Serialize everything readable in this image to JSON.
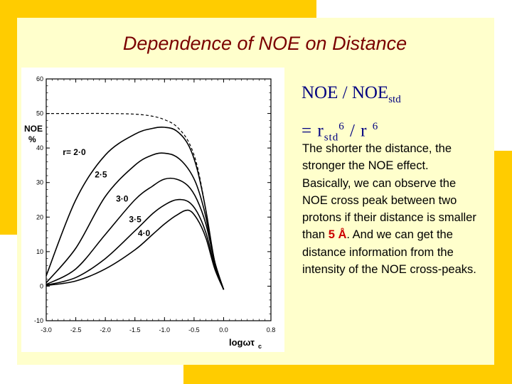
{
  "title": "Dependence of NOE on Distance",
  "formula": {
    "line1_main": "NOE / NOE",
    "line1_sub": "std",
    "line2_prefix": "=  r",
    "line2_sub": "std",
    "line2_sup": "6",
    "line2_mid": " / r ",
    "line2_sup2": "6"
  },
  "description": {
    "text_before": "The shorter the distance, the stronger the NOE effect. Basically, we can observe the NOE cross peak between two protons if their distance is smaller than ",
    "highlight": "5 Å",
    "text_after": ". And we can get the distance information from the intensity of the NOE cross-peaks."
  },
  "colors": {
    "accent": "#ffcc00",
    "panel": "#ffffcc",
    "title": "#7a0000",
    "formula": "#000080",
    "highlight": "#cc0000"
  },
  "chart_data": {
    "type": "line",
    "ylabel": "NOE %",
    "xlabel": "logωτc",
    "xlim": [
      -3.0,
      0.8
    ],
    "ylim": [
      -10,
      60
    ],
    "xticks": [
      "-3.0",
      "-2.5",
      "-2.0",
      "-1.5",
      "-1.0",
      "-0.5",
      "0.0",
      "0.8"
    ],
    "yticks": [
      "60",
      "50",
      "40",
      "30",
      "20",
      "10",
      "0",
      "-10"
    ],
    "series": [
      {
        "name": "dashed",
        "dashed": true,
        "x": [
          -3.0,
          -2.5,
          -2.0,
          -1.5,
          -1.2,
          -1.0,
          -0.8,
          -0.6,
          -0.45,
          -0.3,
          -0.15,
          0.0
        ],
        "y": [
          50,
          50,
          50,
          49.8,
          49.2,
          48.2,
          46.3,
          42,
          35,
          22,
          7,
          -1
        ]
      },
      {
        "name": "r= 2·0",
        "x": [
          -3.0,
          -2.5,
          -2.0,
          -1.5,
          -1.2,
          -1.0,
          -0.8,
          -0.6,
          -0.45,
          -0.3,
          -0.15,
          0.0
        ],
        "y": [
          3,
          25,
          38,
          44,
          45.7,
          46,
          45,
          41,
          34,
          22,
          7,
          -1
        ]
      },
      {
        "name": "2·5",
        "x": [
          -3.0,
          -2.5,
          -2.0,
          -1.5,
          -1.2,
          -1.0,
          -0.8,
          -0.6,
          -0.45,
          -0.3,
          -0.15,
          0.0
        ],
        "y": [
          1,
          11,
          26,
          35,
          38,
          38.5,
          37.5,
          34,
          29,
          20,
          7,
          -1
        ]
      },
      {
        "name": "3·0",
        "x": [
          -3.0,
          -2.5,
          -2.0,
          -1.5,
          -1.2,
          -1.0,
          -0.8,
          -0.6,
          -0.45,
          -0.3,
          -0.15,
          0.0
        ],
        "y": [
          0.5,
          5,
          15,
          25,
          29,
          31,
          31,
          29,
          25,
          18,
          7,
          -1
        ]
      },
      {
        "name": "3·5",
        "x": [
          -3.0,
          -2.5,
          -2.0,
          -1.5,
          -1.2,
          -1.0,
          -0.8,
          -0.6,
          -0.45,
          -0.3,
          -0.15,
          0.0
        ],
        "y": [
          0.3,
          2.5,
          8,
          16,
          21,
          23.5,
          25,
          24.5,
          21.5,
          15.5,
          6,
          -1
        ]
      },
      {
        "name": "4·0",
        "x": [
          -3.0,
          -2.5,
          -2.0,
          -1.5,
          -1.2,
          -1.0,
          -0.8,
          -0.6,
          -0.45,
          -0.3,
          -0.15,
          0.0
        ],
        "y": [
          0.2,
          1.5,
          5,
          10.5,
          15,
          18,
          20.5,
          22,
          19.5,
          14,
          5,
          -1
        ]
      }
    ],
    "annotations": [
      "r= 2·0",
      "2·5",
      "3·0",
      "3·5",
      "4·0"
    ],
    "grid": false
  }
}
